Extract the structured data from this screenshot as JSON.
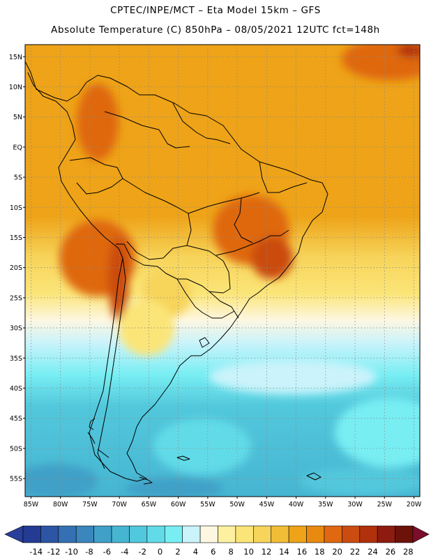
{
  "header": {
    "title_line1": "CPTEC/INPE/MCT –  Eta Model 15km – GFS",
    "title_line2": "Absolute Temperature (C) 850hPa – 08/05/2021 12UTC fct=148h"
  },
  "map": {
    "lon_range": [
      -86,
      -19
    ],
    "lat_range": [
      -58,
      17
    ],
    "lat_ticks": [
      "15N",
      "10N",
      "5N",
      "EQ",
      "5S",
      "10S",
      "15S",
      "20S",
      "25S",
      "30S",
      "35S",
      "40S",
      "45S",
      "50S",
      "55S"
    ],
    "lon_ticks": [
      "85W",
      "80W",
      "75W",
      "70W",
      "65W",
      "60W",
      "55W",
      "50W",
      "45W",
      "40W",
      "35W",
      "30W",
      "25W",
      "20W"
    ],
    "gridlines": "dotted"
  },
  "colorbar": {
    "labels": [
      "-14",
      "-12",
      "-10",
      "-8",
      "-6",
      "-4",
      "-2",
      "0",
      "2",
      "4",
      "6",
      "8",
      "10",
      "12",
      "14",
      "16",
      "18",
      "20",
      "22",
      "24",
      "26",
      "28"
    ],
    "under_color": "#2a3f9b",
    "over_color": "#7c0d2b",
    "colors": [
      "#233b93",
      "#2c55a4",
      "#3470b3",
      "#3a86bd",
      "#40a0c7",
      "#46b5d2",
      "#52c8dc",
      "#62dbe8",
      "#78eef3",
      "#caf3fb",
      "#fdf7e2",
      "#fdf0a0",
      "#fbe578",
      "#f7d45a",
      "#f1bd36",
      "#eea318",
      "#e88a10",
      "#df6811",
      "#cb4c10",
      "#b0310c",
      "#8e1b10",
      "#6c1209"
    ]
  }
}
